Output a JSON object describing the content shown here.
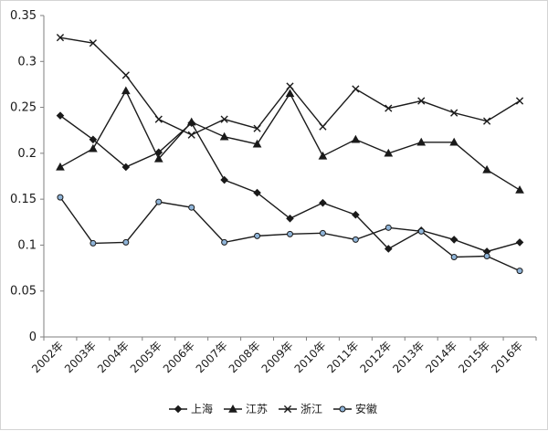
{
  "chart_data": {
    "type": "line",
    "title": "",
    "xlabel": "",
    "ylabel": "",
    "x": [
      "2002年",
      "2003年",
      "2004年",
      "2005年",
      "2006年",
      "2007年",
      "2008年",
      "2009年",
      "2010年",
      "2011年",
      "2012年",
      "2013年",
      "2014年",
      "2015年",
      "2016年"
    ],
    "ylim": [
      0,
      0.35
    ],
    "yticks": [
      "0",
      "0.05",
      "0.1",
      "0.15",
      "0.2",
      "0.25",
      "0.3",
      "0.35"
    ],
    "ytick_values": [
      0,
      0.05,
      0.1,
      0.15,
      0.2,
      0.25,
      0.3,
      0.35
    ],
    "grid": false,
    "legend_position": "bottom",
    "line_color": "#1a1a1a",
    "series": [
      {
        "name": "上海",
        "marker": "diamond",
        "values": [
          0.241,
          0.215,
          0.185,
          0.201,
          0.233,
          0.171,
          0.157,
          0.129,
          0.146,
          0.133,
          0.096,
          0.116,
          0.106,
          0.093,
          0.103
        ]
      },
      {
        "name": "江苏",
        "marker": "triangle",
        "values": [
          0.185,
          0.205,
          0.268,
          0.194,
          0.234,
          0.218,
          0.21,
          0.265,
          0.197,
          0.215,
          0.2,
          0.212,
          0.212,
          0.182,
          0.16
        ]
      },
      {
        "name": "浙江",
        "marker": "cross",
        "values": [
          0.326,
          0.32,
          0.285,
          0.237,
          0.22,
          0.237,
          0.227,
          0.273,
          0.229,
          0.27,
          0.249,
          0.257,
          0.244,
          0.235,
          0.257
        ]
      },
      {
        "name": "安徽",
        "marker": "circle",
        "values": [
          0.152,
          0.102,
          0.103,
          0.147,
          0.141,
          0.103,
          0.11,
          0.112,
          0.113,
          0.106,
          0.119,
          0.115,
          0.087,
          0.088,
          0.072
        ]
      }
    ]
  }
}
